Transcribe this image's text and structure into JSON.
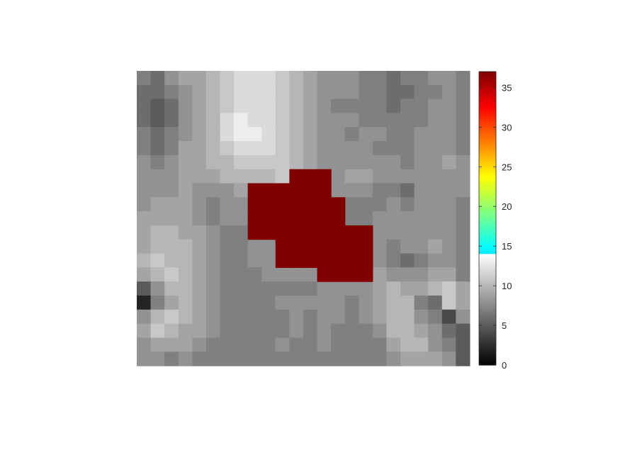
{
  "chart_data": {
    "type": "heatmap",
    "title": "",
    "xlabel": "",
    "ylabel": "",
    "axes_visible": false,
    "rows": 21,
    "cols": 24,
    "overlay": {
      "value": 37,
      "color": "#800000",
      "cells": [
        [
          7,
          11
        ],
        [
          7,
          12
        ],
        [
          7,
          13
        ],
        [
          8,
          8
        ],
        [
          8,
          9
        ],
        [
          8,
          10
        ],
        [
          8,
          11
        ],
        [
          8,
          12
        ],
        [
          8,
          13
        ],
        [
          9,
          8
        ],
        [
          9,
          9
        ],
        [
          9,
          10
        ],
        [
          9,
          11
        ],
        [
          9,
          12
        ],
        [
          9,
          13
        ],
        [
          9,
          14
        ],
        [
          10,
          8
        ],
        [
          10,
          9
        ],
        [
          10,
          10
        ],
        [
          10,
          11
        ],
        [
          10,
          12
        ],
        [
          10,
          13
        ],
        [
          10,
          14
        ],
        [
          11,
          8
        ],
        [
          11,
          9
        ],
        [
          11,
          10
        ],
        [
          11,
          11
        ],
        [
          11,
          12
        ],
        [
          11,
          13
        ],
        [
          11,
          14
        ],
        [
          11,
          15
        ],
        [
          11,
          16
        ],
        [
          12,
          10
        ],
        [
          12,
          11
        ],
        [
          12,
          12
        ],
        [
          12,
          13
        ],
        [
          12,
          14
        ],
        [
          12,
          15
        ],
        [
          12,
          16
        ],
        [
          13,
          10
        ],
        [
          13,
          11
        ],
        [
          13,
          12
        ],
        [
          13,
          13
        ],
        [
          13,
          14
        ],
        [
          13,
          15
        ],
        [
          13,
          16
        ],
        [
          14,
          13
        ],
        [
          14,
          14
        ],
        [
          14,
          15
        ],
        [
          14,
          16
        ]
      ]
    },
    "values": [
      [
        7,
        6,
        8,
        9,
        9,
        10,
        11,
        12,
        12,
        12,
        11,
        10,
        9,
        8,
        8,
        8,
        7,
        7,
        6,
        7,
        7,
        8,
        8,
        7
      ],
      [
        6,
        6,
        7,
        8,
        9,
        10,
        11,
        12,
        12,
        12,
        11,
        10,
        9,
        8,
        8,
        8,
        7,
        7,
        6,
        6,
        7,
        7,
        8,
        7
      ],
      [
        6,
        5,
        6,
        8,
        9,
        10,
        11,
        12,
        12,
        12,
        11,
        10,
        9,
        8,
        7,
        7,
        7,
        7,
        6,
        7,
        7,
        8,
        8,
        7
      ],
      [
        6,
        5,
        6,
        8,
        9,
        10,
        12,
        13,
        12,
        12,
        11,
        10,
        9,
        8,
        8,
        8,
        7,
        7,
        7,
        7,
        7,
        8,
        8,
        7
      ],
      [
        7,
        6,
        7,
        8,
        9,
        10,
        12,
        13,
        13,
        12,
        11,
        10,
        9,
        8,
        8,
        7,
        8,
        8,
        7,
        7,
        8,
        8,
        8,
        7
      ],
      [
        7,
        6,
        7,
        9,
        9,
        10,
        11,
        12,
        12,
        12,
        11,
        10,
        9,
        8,
        8,
        8,
        8,
        7,
        7,
        7,
        8,
        8,
        8,
        7
      ],
      [
        8,
        7,
        8,
        9,
        9,
        10,
        10,
        11,
        11,
        11,
        11,
        10,
        9,
        8,
        8,
        8,
        8,
        8,
        8,
        7,
        8,
        8,
        9,
        8
      ],
      [
        8,
        8,
        8,
        9,
        9,
        9,
        10,
        10,
        10,
        10,
        11,
        8,
        8,
        8,
        8,
        9,
        9,
        8,
        8,
        8,
        8,
        8,
        8,
        8
      ],
      [
        8,
        8,
        8,
        9,
        8,
        8,
        8,
        9,
        9,
        9,
        9,
        8,
        8,
        8,
        8,
        8,
        8,
        7,
        7,
        6,
        8,
        8,
        8,
        8
      ],
      [
        8,
        9,
        9,
        9,
        8,
        7,
        8,
        8,
        8,
        8,
        8,
        8,
        8,
        8,
        8,
        7,
        7,
        7,
        8,
        7,
        8,
        8,
        8,
        7
      ],
      [
        9,
        9,
        9,
        9,
        8,
        7,
        8,
        8,
        8,
        8,
        8,
        8,
        8,
        8,
        8,
        7,
        7,
        8,
        8,
        8,
        8,
        8,
        8,
        7
      ],
      [
        9,
        10,
        10,
        9,
        9,
        8,
        7,
        7,
        8,
        8,
        8,
        8,
        8,
        8,
        8,
        8,
        8,
        8,
        8,
        8,
        8,
        8,
        8,
        7
      ],
      [
        9,
        10,
        10,
        10,
        9,
        8,
        7,
        7,
        8,
        8,
        10,
        8,
        8,
        8,
        8,
        8,
        8,
        8,
        7,
        8,
        8,
        9,
        8,
        7
      ],
      [
        10,
        11,
        10,
        10,
        9,
        8,
        7,
        7,
        8,
        8,
        9,
        8,
        8,
        8,
        8,
        8,
        8,
        8,
        7,
        6,
        7,
        8,
        8,
        7
      ],
      [
        9,
        10,
        11,
        10,
        9,
        8,
        7,
        7,
        7,
        8,
        8,
        8,
        8,
        8,
        8,
        8,
        8,
        9,
        8,
        8,
        8,
        9,
        9,
        7
      ],
      [
        5,
        8,
        10,
        10,
        9,
        8,
        7,
        7,
        7,
        7,
        7,
        7,
        7,
        8,
        8,
        8,
        8,
        9,
        10,
        9,
        9,
        10,
        11,
        9
      ],
      [
        2,
        7,
        9,
        10,
        9,
        8,
        7,
        7,
        7,
        7,
        8,
        8,
        8,
        8,
        8,
        7,
        8,
        9,
        10,
        10,
        7,
        6,
        11,
        9
      ],
      [
        8,
        10,
        11,
        10,
        9,
        8,
        7,
        7,
        7,
        7,
        7,
        8,
        7,
        8,
        8,
        7,
        8,
        9,
        10,
        10,
        8,
        7,
        4,
        8
      ],
      [
        9,
        11,
        10,
        9,
        9,
        8,
        7,
        7,
        7,
        7,
        7,
        8,
        7,
        8,
        7,
        7,
        7,
        8,
        10,
        10,
        9,
        8,
        6,
        5
      ],
      [
        8,
        9,
        9,
        9,
        8,
        7,
        7,
        7,
        7,
        7,
        8,
        7,
        7,
        8,
        7,
        7,
        7,
        7,
        9,
        10,
        10,
        8,
        7,
        5
      ],
      [
        8,
        8,
        7,
        8,
        7,
        7,
        7,
        7,
        7,
        7,
        7,
        7,
        7,
        7,
        7,
        7,
        7,
        7,
        8,
        9,
        9,
        9,
        8,
        5
      ]
    ],
    "colorbar": {
      "min": 0,
      "max": 37,
      "ticks": [
        "0",
        "5",
        "10",
        "15",
        "20",
        "25",
        "30",
        "35"
      ],
      "tick_values": [
        0,
        5,
        10,
        15,
        20,
        25,
        30,
        35
      ],
      "gray_max": 14,
      "colormap_upper": "jet"
    }
  }
}
